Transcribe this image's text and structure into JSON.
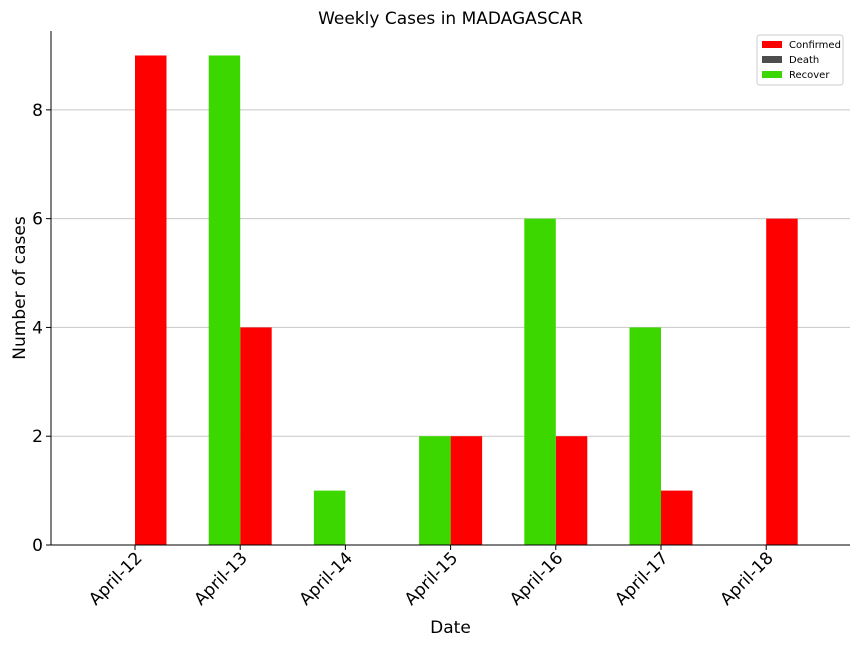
{
  "chart_data": {
    "type": "bar",
    "title": "Weekly Cases in MADAGASCAR",
    "xlabel": "Date",
    "ylabel": "Number of cases",
    "categories": [
      "April-12",
      "April-13",
      "April-14",
      "April-15",
      "April-16",
      "April-17",
      "April-18"
    ],
    "series": [
      {
        "name": "Confirmed",
        "color": "#ff0000",
        "values": [
          9,
          4,
          0,
          2,
          2,
          1,
          6
        ]
      },
      {
        "name": "Death",
        "color": "#4d4d4d",
        "values": [
          0,
          0,
          0,
          0,
          0,
          0,
          0
        ]
      },
      {
        "name": "Recover",
        "color": "#3dd700",
        "values": [
          0,
          9,
          1,
          2,
          6,
          4,
          0
        ]
      }
    ],
    "ylim": [
      0,
      9.45
    ],
    "yticks": [
      0,
      2,
      4,
      6,
      8
    ],
    "grid": "horizontal",
    "legend_position": "top-right"
  }
}
